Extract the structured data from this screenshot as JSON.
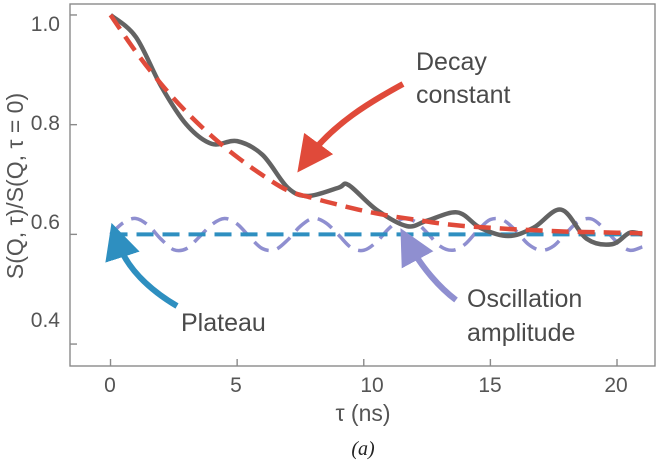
{
  "chart_data": {
    "type": "line",
    "xlabel": "τ (ns)",
    "ylabel": "S(Q, τ)/S(Q, τ = 0)",
    "xlim": [
      -1.6,
      21.5
    ],
    "ylim": [
      0.36,
      1.02
    ],
    "xticks": [
      0,
      5,
      10,
      15,
      20
    ],
    "yticks": [
      0.4,
      0.6,
      0.8,
      1.0
    ],
    "xtick_labels": [
      "0",
      "5",
      "10",
      "15",
      "20"
    ],
    "ytick_labels": [
      "0.4",
      "0.6",
      "0.8",
      "1.0"
    ],
    "grid": false,
    "caption": "(a)",
    "series": [
      {
        "key": "decay",
        "color": "#e04a3a",
        "dash": "dashed",
        "x": [
          0,
          1,
          2,
          3,
          4,
          5,
          6,
          7,
          8,
          9,
          10,
          11,
          12,
          13,
          14,
          15,
          16,
          17,
          18,
          19,
          20,
          21
        ],
        "values": [
          1.0,
          0.933,
          0.874,
          0.823,
          0.779,
          0.741,
          0.708,
          0.68,
          0.666,
          0.654,
          0.643,
          0.634,
          0.627,
          0.62,
          0.615,
          0.612,
          0.609,
          0.607,
          0.605,
          0.604,
          0.603,
          0.602
        ]
      },
      {
        "key": "total",
        "color": "#636363",
        "dash": "solid",
        "x": [
          0,
          1,
          2,
          3,
          4,
          5,
          6,
          7,
          7.8,
          9,
          9.4,
          10.5,
          11.7,
          12.5,
          13.7,
          14.6,
          15.7,
          16.7,
          17.8,
          18.8,
          19.8,
          20.5,
          21
        ],
        "values": [
          1.0,
          0.96,
          0.87,
          0.8,
          0.765,
          0.77,
          0.745,
          0.685,
          0.67,
          0.685,
          0.69,
          0.645,
          0.615,
          0.625,
          0.64,
          0.612,
          0.597,
          0.612,
          0.645,
          0.592,
          0.582,
          0.603,
          0.6
        ]
      },
      {
        "key": "plateau",
        "color": "#2e8fc0",
        "dash": "dashed",
        "x": [
          0,
          21
        ],
        "values": [
          0.6,
          0.6
        ]
      },
      {
        "key": "oscillation",
        "color": "#8f8fd0",
        "dash": "dashed",
        "x": [
          0,
          0.5,
          1,
          1.5,
          2,
          2.5,
          3,
          3.5,
          4,
          4.5,
          5,
          5.5,
          6,
          6.5,
          7,
          7.5,
          8,
          8.5,
          9,
          9.5,
          10,
          10.5,
          11,
          11.5,
          12,
          12.5,
          13,
          13.5,
          14,
          14.5,
          15,
          15.5,
          16,
          16.5,
          17,
          17.5,
          18,
          18.5,
          19,
          19.5,
          20,
          20.5,
          21
        ],
        "values": [
          0.6,
          0.621,
          0.629,
          0.616,
          0.591,
          0.572,
          0.574,
          0.595,
          0.618,
          0.629,
          0.619,
          0.595,
          0.574,
          0.572,
          0.59,
          0.615,
          0.629,
          0.621,
          0.599,
          0.576,
          0.571,
          0.586,
          0.611,
          0.628,
          0.624,
          0.603,
          0.579,
          0.571,
          0.582,
          0.607,
          0.627,
          0.626,
          0.607,
          0.582,
          0.571,
          0.579,
          0.603,
          0.624,
          0.628,
          0.61,
          0.586,
          0.571,
          0.577
        ]
      }
    ],
    "annotations": [
      {
        "key": "decay",
        "lines": [
          "Decay",
          "constant"
        ],
        "color": "#e04a3a"
      },
      {
        "key": "plateau",
        "lines": [
          "Plateau"
        ],
        "color": "#2e8fc0"
      },
      {
        "key": "oscillation",
        "lines": [
          "Oscillation",
          "amplitude"
        ],
        "color": "#8f8fd0"
      }
    ]
  }
}
